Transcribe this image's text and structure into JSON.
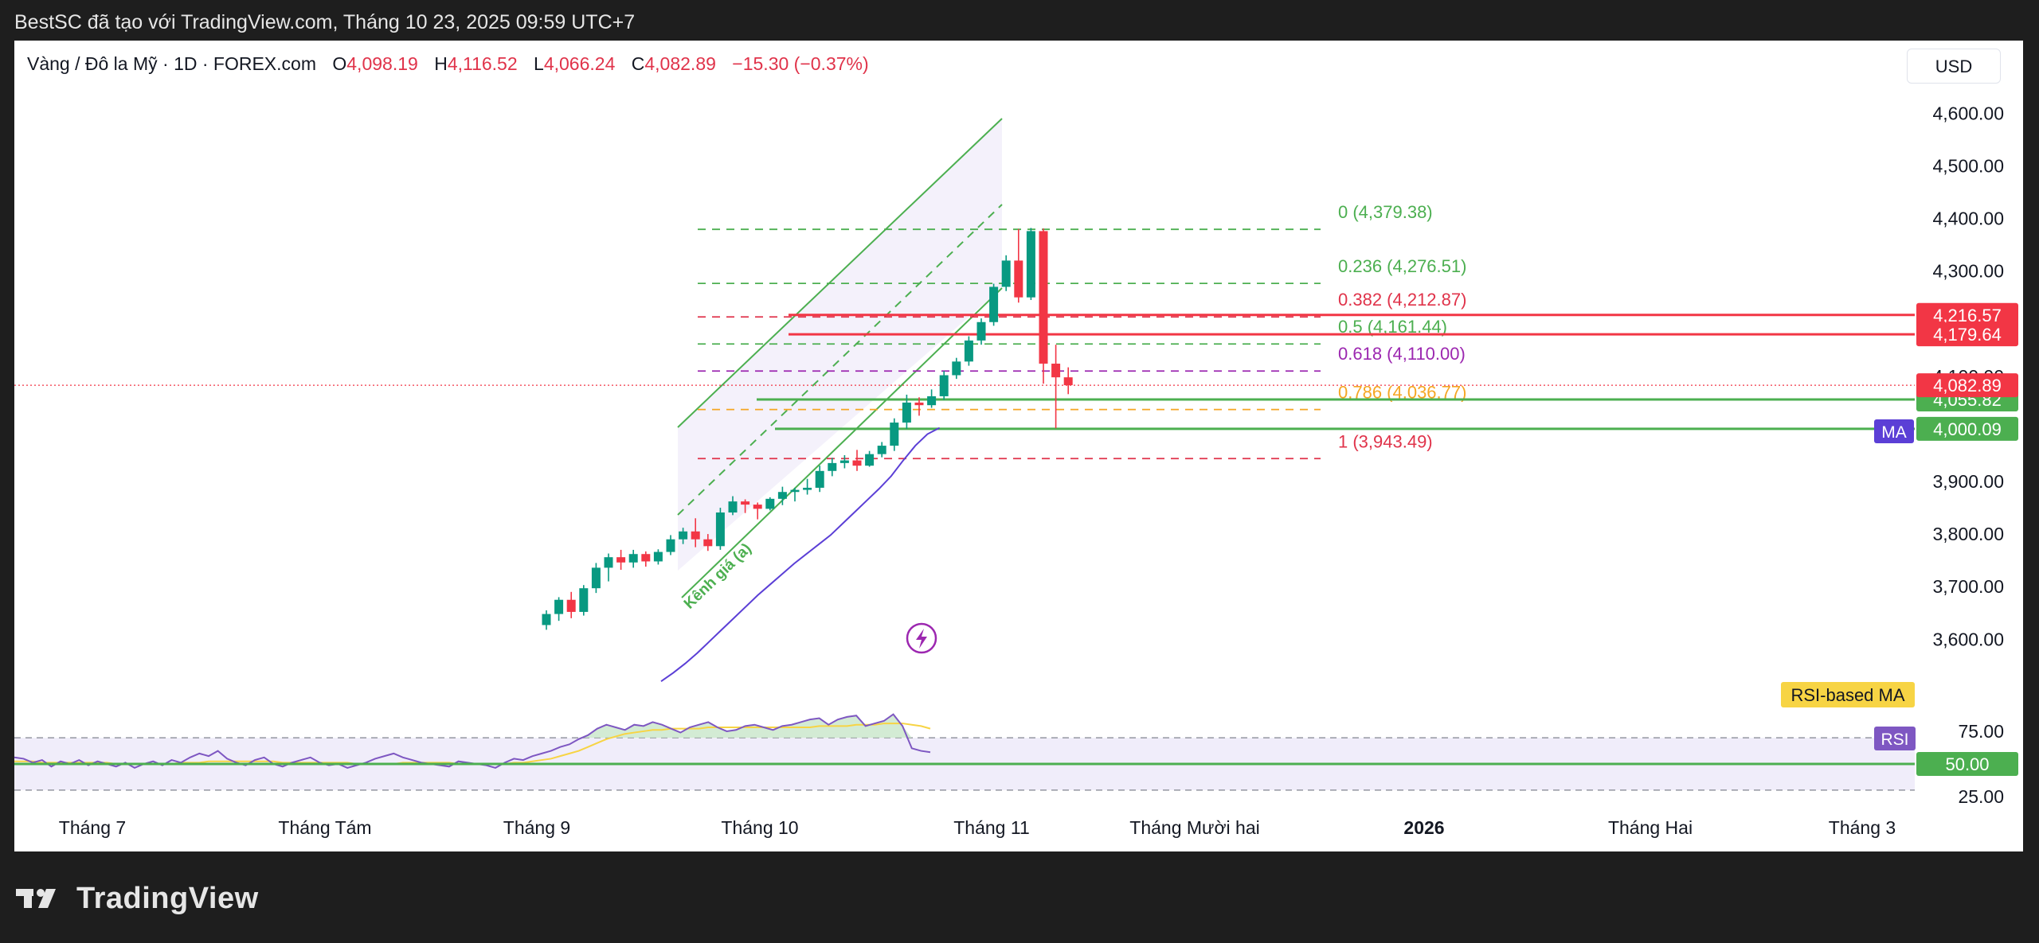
{
  "topbar": {
    "text": "BestSC đã tạo với TradingView.com, Tháng 10 23, 2025 09:59 UTC+7"
  },
  "legend": {
    "symbol": "Vàng / Đô la Mỹ · 1D · FOREX.com",
    "o_label": "O",
    "o": "4,098.19",
    "h_label": "H",
    "h": "4,116.52",
    "l_label": "L",
    "l": "4,066.24",
    "c_label": "C",
    "c": "4,082.89",
    "change": "−15.30 (−0.37%)"
  },
  "currency": "USD",
  "footer": {
    "brand": "TradingView",
    "logo_icon": "tradingview-logo-icon"
  },
  "chart_data": {
    "type": "candlestick",
    "price_axis": {
      "range": [
        3490,
        4655
      ],
      "ticks": [
        3600,
        3700,
        3800,
        3900,
        4000,
        4100,
        4200,
        4300,
        4400,
        4500,
        4600
      ],
      "tick_labels": [
        "3,600.00",
        "3,700.00",
        "3,800.00",
        "3,900.00",
        "4,000.00",
        "4,100.00",
        "4,200.00",
        "4,300.00",
        "4,400.00",
        "4,500.00",
        "4,600.00"
      ]
    },
    "time_axis": {
      "labels": [
        "Tháng 7",
        "Tháng Tám",
        "Tháng 9",
        "Tháng 10",
        "Tháng 11",
        "Tháng Mười hai",
        "2026",
        "Tháng Hai",
        "Tháng 3"
      ],
      "bold": [
        "2026"
      ]
    },
    "candles": [
      [
        3627,
        3655,
        3618,
        3648
      ],
      [
        3648,
        3680,
        3635,
        3675
      ],
      [
        3675,
        3690,
        3640,
        3652
      ],
      [
        3652,
        3703,
        3645,
        3697
      ],
      [
        3697,
        3745,
        3688,
        3736
      ],
      [
        3736,
        3763,
        3710,
        3756
      ],
      [
        3756,
        3770,
        3732,
        3746
      ],
      [
        3746,
        3770,
        3736,
        3762
      ],
      [
        3762,
        3767,
        3738,
        3748
      ],
      [
        3748,
        3771,
        3742,
        3766
      ],
      [
        3766,
        3798,
        3760,
        3790
      ],
      [
        3790,
        3812,
        3781,
        3805
      ],
      [
        3805,
        3830,
        3775,
        3790
      ],
      [
        3790,
        3800,
        3768,
        3777
      ],
      [
        3777,
        3850,
        3770,
        3841
      ],
      [
        3841,
        3872,
        3836,
        3862
      ],
      [
        3862,
        3866,
        3840,
        3856
      ],
      [
        3856,
        3860,
        3828,
        3848
      ],
      [
        3848,
        3870,
        3845,
        3867
      ],
      [
        3867,
        3890,
        3855,
        3880
      ],
      [
        3880,
        3888,
        3862,
        3884
      ],
      [
        3884,
        3905,
        3875,
        3888
      ],
      [
        3888,
        3930,
        3880,
        3920
      ],
      [
        3920,
        3945,
        3910,
        3935
      ],
      [
        3935,
        3950,
        3925,
        3940
      ],
      [
        3940,
        3960,
        3920,
        3930
      ],
      [
        3930,
        3958,
        3928,
        3952
      ],
      [
        3952,
        3975,
        3946,
        3968
      ],
      [
        3968,
        4020,
        3958,
        4012
      ],
      [
        4012,
        4065,
        4000,
        4050
      ],
      [
        4050,
        4060,
        4025,
        4045
      ],
      [
        4045,
        4075,
        4040,
        4062
      ],
      [
        4062,
        4110,
        4055,
        4102
      ],
      [
        4102,
        4135,
        4095,
        4128
      ],
      [
        4128,
        4176,
        4120,
        4168
      ],
      [
        4168,
        4210,
        4160,
        4203
      ],
      [
        4203,
        4276,
        4196,
        4270
      ],
      [
        4270,
        4330,
        4262,
        4320
      ],
      [
        4320,
        4380,
        4240,
        4250
      ],
      [
        4250,
        4382,
        4245,
        4376
      ],
      [
        4376,
        4381,
        4086,
        4124
      ],
      [
        4124,
        4160,
        4001,
        4098
      ],
      [
        4098,
        4117,
        4066,
        4083
      ]
    ],
    "fibonacci": [
      {
        "level": "0",
        "price": 4379.38,
        "label": "0 (4,379.38)",
        "color": "#4caf50"
      },
      {
        "level": "0.236",
        "price": 4276.51,
        "label": "0.236 (4,276.51)",
        "color": "#4caf50"
      },
      {
        "level": "0.382",
        "price": 4212.87,
        "label": "0.382 (4,212.87)",
        "color": "#e0334a"
      },
      {
        "level": "0.5",
        "price": 4161.44,
        "label": "0.5 (4,161.44)",
        "color": "#4caf50"
      },
      {
        "level": "0.618",
        "price": 4110.0,
        "label": "0.618 (4,110.00)",
        "color": "#9c27b0"
      },
      {
        "level": "0.786",
        "price": 4036.77,
        "label": "0.786 (4,036.77)",
        "color": "#f5a623"
      },
      {
        "level": "1",
        "price": 3943.49,
        "label": "1 (3,943.49)",
        "color": "#e0334a"
      }
    ],
    "horizontal_lines": [
      {
        "price": 4216.57,
        "label": "4,216.57",
        "color": "#f23645"
      },
      {
        "price": 4179.64,
        "label": "4,179.64",
        "color": "#f23645"
      },
      {
        "price": 4055.82,
        "label": "4,055.82",
        "color": "#4caf50"
      },
      {
        "price": 4000.09,
        "label": "4,000.09",
        "color": "#4caf50"
      }
    ],
    "last_price": {
      "price": 4082.89,
      "label": "4,082.89",
      "color": "#f23645"
    },
    "channel_label": "Kênh giá (a)",
    "ma": {
      "label": "MA",
      "color": "#5b3fd6",
      "values": [
        3520,
        3536,
        3554,
        3574,
        3596,
        3618,
        3640,
        3662,
        3684,
        3704,
        3724,
        3744,
        3762,
        3780,
        3798,
        3820,
        3842,
        3864,
        3886,
        3910,
        3940,
        3968,
        3990,
        4002
      ]
    },
    "rsi": {
      "label": "RSI",
      "ma_label": "RSI-based MA",
      "level_label": "50.00",
      "axis_ticks": [
        25,
        50,
        75
      ],
      "tick_labels": [
        "25.00",
        "50.00",
        "75.00"
      ],
      "bands": [
        30,
        70
      ],
      "range": [
        22,
        92
      ],
      "values": [
        55,
        54,
        51,
        53,
        48,
        52,
        50,
        53,
        49,
        52,
        50,
        48,
        51,
        47,
        50,
        52,
        49,
        53,
        51,
        55,
        58,
        56,
        60,
        54,
        51,
        49,
        53,
        55,
        50,
        48,
        51,
        53,
        55,
        51,
        49,
        50,
        47,
        49,
        51,
        54,
        56,
        58,
        55,
        53,
        51,
        50,
        49,
        48,
        52,
        51,
        50,
        49,
        47,
        51,
        54,
        53,
        56,
        58,
        60,
        63,
        65,
        69,
        72,
        77,
        80,
        78,
        76,
        80,
        79,
        82,
        80,
        77,
        74,
        78,
        80,
        82,
        78,
        75,
        76,
        79,
        80,
        78,
        76,
        79,
        80,
        82,
        84,
        85,
        80,
        84,
        86,
        87,
        79,
        81,
        83,
        88,
        79,
        62,
        60,
        59
      ],
      "ma_values": [
        52,
        52,
        52,
        51,
        51,
        51,
        51,
        51,
        51,
        51,
        51,
        50,
        50,
        50,
        50,
        50,
        50,
        50,
        51,
        51,
        51,
        52,
        52,
        52,
        52,
        52,
        52,
        52,
        52,
        51,
        51,
        51,
        51,
        51,
        51,
        51,
        51,
        50,
        50,
        50,
        50,
        50,
        51,
        51,
        51,
        51,
        51,
        51,
        50,
        50,
        50,
        50,
        50,
        50,
        51,
        51,
        52,
        53,
        54,
        56,
        58,
        60,
        63,
        66,
        69,
        71,
        73,
        74,
        75,
        76,
        76,
        77,
        77,
        77,
        77,
        78,
        78,
        78,
        78,
        78,
        78,
        78,
        78,
        78,
        78,
        78,
        78,
        79,
        79,
        79,
        79,
        80,
        80,
        80,
        81,
        81,
        81,
        80,
        79,
        77
      ]
    }
  }
}
